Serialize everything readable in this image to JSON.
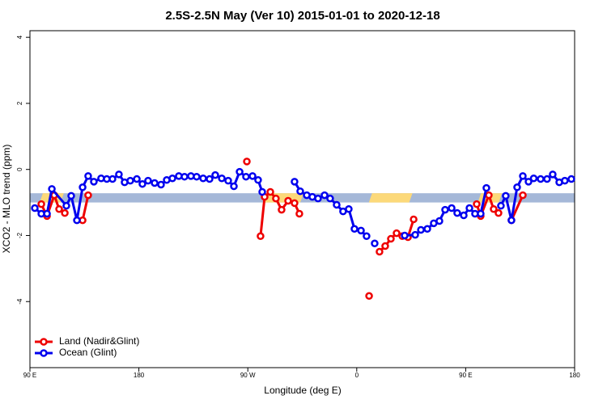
{
  "chart_data": {
    "type": "line",
    "title": "2.5S-2.5N May (Ver 10)   2015-01-01 to 2020-12-18",
    "x_label": "Longitude (deg E)",
    "y_label": "XCO2 - MLO trend (ppm)",
    "xlim": [
      90,
      540
    ],
    "ylim": [
      -6,
      4.2
    ],
    "xticks": [
      {
        "value": 90,
        "label": "90 E"
      },
      {
        "value": 180,
        "label": "180"
      },
      {
        "value": 270,
        "label": "90 W"
      },
      {
        "value": 360,
        "label": "0"
      },
      {
        "value": 450,
        "label": "90 E"
      },
      {
        "value": 540,
        "label": "180"
      }
    ],
    "yticks": [
      4,
      2,
      0,
      -2,
      -4
    ],
    "band": {
      "ylim": [
        -1.0,
        -0.72
      ],
      "color": "#a5b8d8"
    },
    "land_regions": {
      "color": "#fcd97a",
      "x": [
        [
          98,
          118
        ],
        [
          283,
          316
        ],
        [
          370,
          406
        ],
        [
          460,
          480
        ]
      ]
    },
    "legend": "bottom-left",
    "series": [
      {
        "name": "Land (Nadir&Glint)",
        "color": "#ee0000",
        "x": [
          99.4,
          104.1,
          110.1,
          114.1,
          118.8,
          null,
          133.5,
          138.1,
          null,
          269.2,
          null,
          280.5,
          283.9,
          288.6,
          293.2,
          297.9,
          303.3,
          308.6,
          312.6,
          null,
          370.2,
          null,
          378.8,
          383.5,
          388.2,
          392.9,
          397.6,
          402.3,
          407.0,
          null,
          459.1,
          462.4,
          469.1,
          473.1,
          477.1,
          null,
          487.8,
          497.2
        ],
        "values": [
          -1.05,
          -1.41,
          -0.78,
          -1.2,
          -1.32,
          null,
          -1.54,
          -0.78,
          null,
          0.24,
          null,
          -2.02,
          -0.83,
          -0.68,
          -0.88,
          -1.22,
          -0.95,
          -1.02,
          -1.34,
          null,
          -3.83,
          null,
          -2.49,
          -2.32,
          -2.1,
          -1.93,
          -2.02,
          -2.05,
          -1.51,
          null,
          -1.05,
          -1.41,
          -0.78,
          -1.2,
          -1.32,
          null,
          -1.54,
          -0.78
        ]
      },
      {
        "name": "Ocean (Glint)",
        "color": "#0000ee",
        "x": [
          94.0,
          99.4,
          104.1,
          108.1,
          120.1,
          124.1,
          128.8,
          133.5,
          138.1,
          142.8,
          148.8,
          153.5,
          158.2,
          163.5,
          168.2,
          172.9,
          178.3,
          182.9,
          187.6,
          193.0,
          198.3,
          203.0,
          207.7,
          213.0,
          217.7,
          223.0,
          227.7,
          233.1,
          238.4,
          243.1,
          248.5,
          253.8,
          258.5,
          263.2,
          268.5,
          273.9,
          278.5,
          281.9,
          null,
          308.6,
          313.3,
          318.7,
          323.3,
          328.0,
          333.4,
          338.0,
          343.4,
          348.7,
          353.4,
          358.1,
          363.5,
          368.1,
          null,
          374.8,
          null,
          399.6,
          408.3,
          413.0,
          418.3,
          423.6,
          428.3,
          433.0,
          438.4,
          443.0,
          448.4,
          453.1,
          457.7,
          462.4,
          467.1,
          null,
          479.1,
          483.1,
          487.8,
          492.5,
          497.2,
          501.9,
          506.2,
          511.9,
          517.2,
          521.9,
          527.3,
          531.9,
          537.3
        ],
        "values": [
          -1.17,
          -1.34,
          -1.34,
          -0.59,
          -1.1,
          -0.8,
          -1.54,
          -0.54,
          -0.2,
          -0.37,
          -0.27,
          -0.29,
          -0.29,
          -0.15,
          -0.39,
          -0.34,
          -0.29,
          -0.44,
          -0.34,
          -0.41,
          -0.46,
          -0.32,
          -0.27,
          -0.2,
          -0.22,
          -0.2,
          -0.22,
          -0.27,
          -0.29,
          -0.17,
          -0.27,
          -0.34,
          -0.51,
          -0.07,
          -0.22,
          -0.2,
          -0.32,
          -0.68,
          null,
          -0.37,
          -0.66,
          -0.78,
          -0.83,
          -0.88,
          -0.78,
          -0.88,
          -1.07,
          -1.27,
          -1.2,
          -1.8,
          -1.85,
          -2.02,
          null,
          -2.24,
          null,
          -2.0,
          -1.98,
          -1.83,
          -1.8,
          -1.63,
          -1.56,
          -1.22,
          -1.17,
          -1.32,
          -1.39,
          -1.17,
          -1.34,
          -1.34,
          -0.56,
          null,
          -1.1,
          -0.8,
          -1.54,
          -0.54,
          -0.2,
          -0.37,
          -0.27,
          -0.29,
          -0.29,
          -0.15,
          -0.39,
          -0.34,
          -0.29
        ]
      }
    ]
  }
}
